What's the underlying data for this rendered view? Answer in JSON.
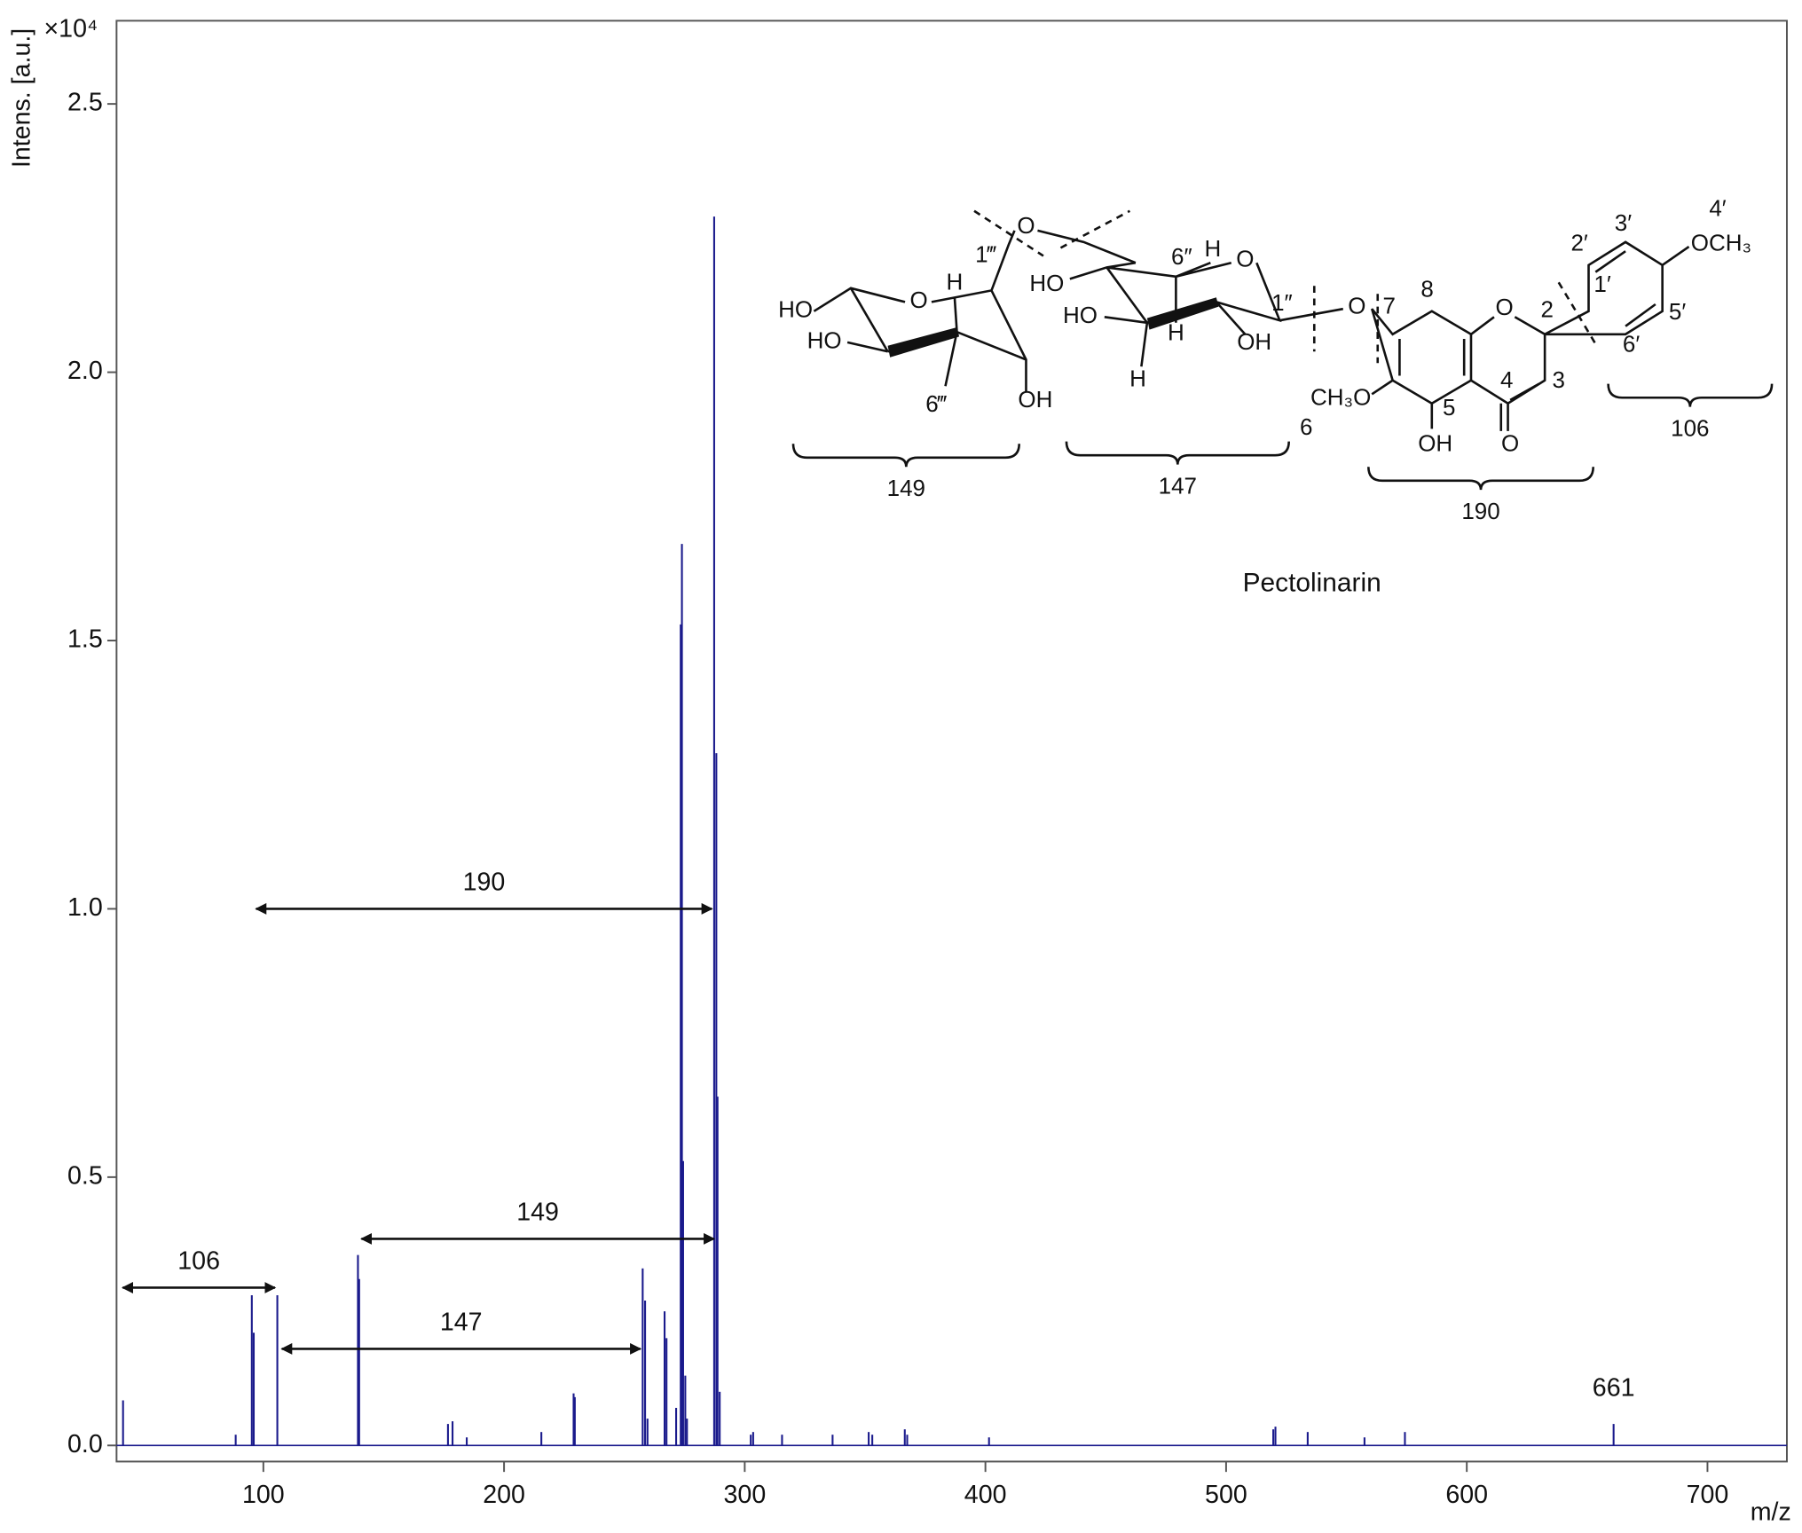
{
  "chart_data": {
    "type": "spectrum",
    "y_label": "Intens. [a.u.]",
    "y_multiplier": "×10⁴",
    "x_label": "m/z",
    "color": "#1a1a8c",
    "x": [
      41.7,
      88.5,
      95.2,
      96.0,
      105.8,
      139.3,
      139.8,
      176.7,
      178.6,
      184.5,
      215.5,
      228.9,
      229.4,
      257.6,
      258.6,
      259.6,
      266.7,
      267.5,
      271.5,
      273.4,
      273.9,
      274.4,
      275.3,
      276.0,
      287.3,
      288.2,
      288.7,
      289.6,
      302.5,
      303.5,
      315.5,
      336.5,
      351.5,
      353.0,
      366.5,
      367.5,
      401.5,
      519.6,
      520.5,
      533.9,
      557.5,
      574.3,
      661.0
    ],
    "values": [
      0.084,
      0.02,
      0.28,
      0.21,
      0.28,
      0.355,
      0.31,
      0.04,
      0.045,
      0.015,
      0.025,
      0.097,
      0.09,
      0.33,
      0.27,
      0.05,
      0.25,
      0.2,
      0.07,
      1.53,
      1.68,
      0.53,
      0.13,
      0.05,
      2.29,
      1.29,
      0.65,
      0.1,
      0.02,
      0.025,
      0.02,
      0.02,
      0.025,
      0.02,
      0.03,
      0.02,
      0.015,
      0.03,
      0.035,
      0.025,
      0.015,
      0.025,
      0.04
    ],
    "xlim": [
      39,
      733
    ],
    "ylim": [
      -0.03,
      2.655
    ],
    "xticks": [
      100,
      200,
      300,
      400,
      500,
      600,
      700
    ],
    "yticks": [
      {
        "value": 0,
        "label": "0.0"
      },
      0.5,
      {
        "value": 1,
        "label": "1.0"
      },
      1.5,
      {
        "value": 2,
        "label": "2.0"
      },
      2.5
    ],
    "arrows": [
      {
        "label": "190",
        "from": 96.0,
        "to": 287.3,
        "y": 1.0
      },
      {
        "label": "149",
        "from": 139.8,
        "to": 288.2,
        "y": 0.385
      },
      {
        "label": "106",
        "from": 40.6,
        "to": 105.8,
        "y": 0.294
      },
      {
        "label": "147",
        "from": 106.7,
        "to": 257.6,
        "y": 0.18
      }
    ],
    "peak_labels": [
      {
        "text": "661",
        "x": 661,
        "y": 0.04
      }
    ]
  },
  "structure": {
    "name": "Pectolinarin",
    "labels": [
      "HO",
      "HO",
      "O",
      "H",
      "1‴",
      "6‴",
      "OH",
      "O",
      "HO",
      "6″",
      "H",
      "O",
      "HO",
      "H",
      "OH",
      "H",
      "1″",
      "O",
      "7",
      "8",
      "O",
      "2",
      "2′",
      "3′",
      "4′",
      "OCH₃",
      "1′",
      "5′",
      "6′",
      "3",
      "4",
      "CH₃O",
      "6",
      "5",
      "OH",
      "O"
    ],
    "fragments": [
      "149",
      "147",
      "190",
      "106"
    ]
  }
}
